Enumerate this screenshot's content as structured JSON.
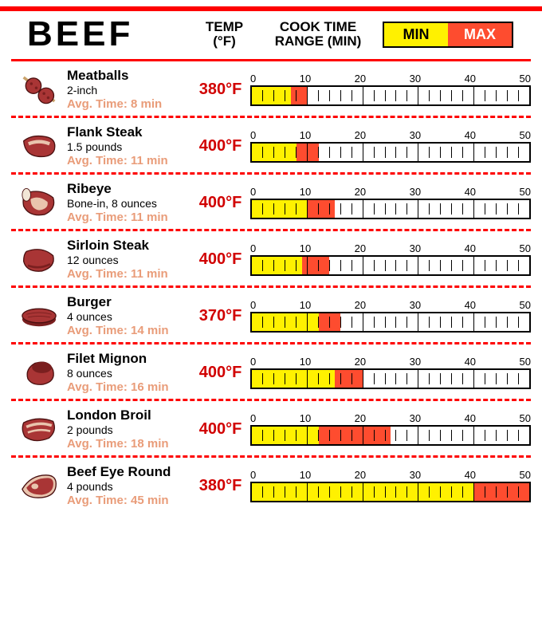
{
  "header": {
    "title": "BEEF",
    "temp_label_l1": "TEMP",
    "temp_label_l2": "(°F)",
    "range_label_l1": "COOK TIME",
    "range_label_l2": "RANGE (MIN)",
    "legend_min": "MIN",
    "legend_max": "MAX"
  },
  "style": {
    "yellow": "#fff100",
    "orange": "#fe4c2f",
    "red": "#fe0000",
    "tan": "#e99c79",
    "axis_max": 50,
    "tick_labels": [
      "0",
      "10",
      "20",
      "30",
      "40",
      "50"
    ]
  },
  "items": [
    {
      "name": "Meatballs",
      "portion": "2-inch",
      "avg": "Avg. Time: 8 min",
      "temp": "380°F",
      "min": 7,
      "max": 10,
      "icon": "meatballs"
    },
    {
      "name": "Flank Steak",
      "portion": "1.5 pounds",
      "avg": "Avg. Time: 11 min",
      "temp": "400°F",
      "min": 8,
      "max": 12,
      "icon": "flank"
    },
    {
      "name": "Ribeye",
      "portion": "Bone-in, 8 ounces",
      "avg": "Avg. Time: 11 min",
      "temp": "400°F",
      "min": 10,
      "max": 15,
      "icon": "ribeye"
    },
    {
      "name": "Sirloin Steak",
      "portion": "12 ounces",
      "avg": "Avg. Time: 11 min",
      "temp": "400°F",
      "min": 9,
      "max": 14,
      "icon": "sirloin"
    },
    {
      "name": "Burger",
      "portion": "4 ounces",
      "avg": "Avg. Time: 14 min",
      "temp": "370°F",
      "min": 12,
      "max": 16,
      "icon": "burger"
    },
    {
      "name": "Filet Mignon",
      "portion": "8 ounces",
      "avg": "Avg. Time: 16 min",
      "temp": "400°F",
      "min": 15,
      "max": 20,
      "icon": "filet"
    },
    {
      "name": "London Broil",
      "portion": "2 pounds",
      "avg": "Avg. Time: 18 min",
      "temp": "400°F",
      "min": 12,
      "max": 25,
      "icon": "london"
    },
    {
      "name": "Beef Eye Round",
      "portion": "4 pounds",
      "avg": "Avg. Time: 45 min",
      "temp": "380°F",
      "min": 40,
      "max": 50,
      "icon": "eyeround"
    }
  ]
}
